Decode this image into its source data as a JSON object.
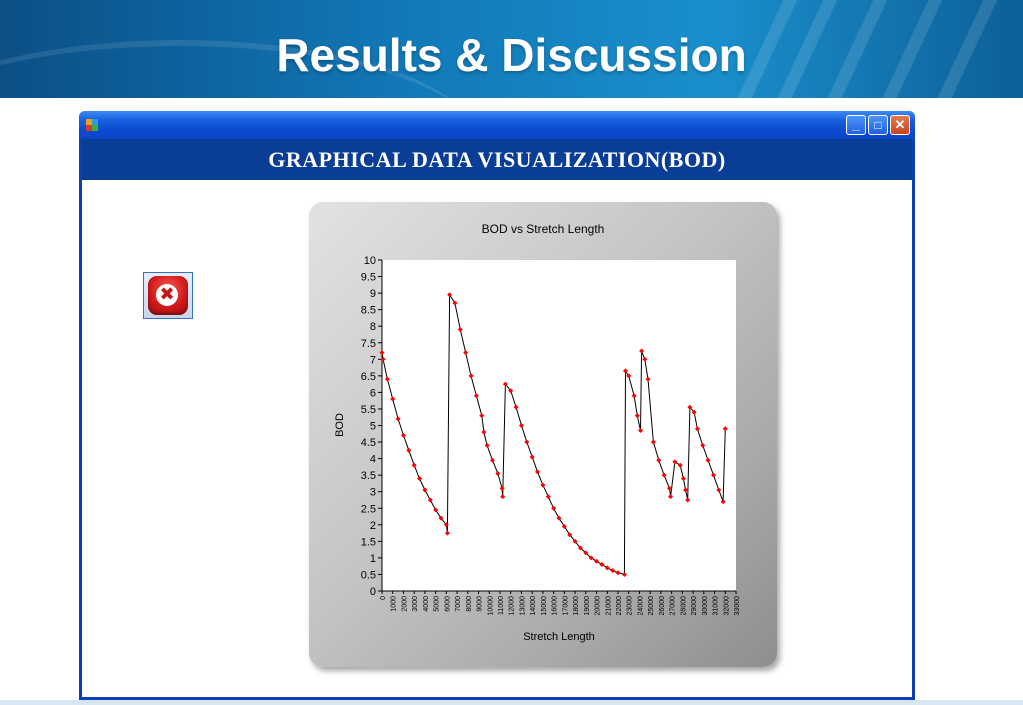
{
  "slide": {
    "title": "Results & Discussion"
  },
  "window": {
    "header": "GRAPHICAL DATA VISUALIZATION(BOD)",
    "buttons": {
      "minimize": "_",
      "maximize": "□",
      "close": "✕"
    },
    "exit_icon": "close-icon"
  },
  "colors": {
    "banner": "#1279b8",
    "header_band": "#0a3d96",
    "series_line": "#000000",
    "series_marker": "#ff0000"
  },
  "chart_data": {
    "type": "line",
    "title": "BOD vs Stretch Length",
    "xlabel": "Stretch Length",
    "ylabel": "BOD",
    "ylim": [
      0,
      10
    ],
    "xlim": [
      0,
      33000
    ],
    "yticks": [
      0,
      0.5,
      1,
      1.5,
      2,
      2.5,
      3,
      3.5,
      4,
      4.5,
      5,
      5.5,
      6,
      6.5,
      7,
      7.5,
      8,
      8.5,
      9,
      9.5,
      10
    ],
    "ytick_labels": [
      "0",
      "0.5",
      "1",
      "1.5",
      "2",
      "2.5",
      "3",
      "3.5",
      "4",
      "4.5",
      "5",
      "5.5",
      "6",
      "6.5",
      "7",
      "7.5",
      "8",
      "8.5",
      "9",
      "9.5",
      "10"
    ],
    "xticks": [
      0,
      1000,
      2000,
      3000,
      4000,
      5000,
      6000,
      7000,
      8000,
      9000,
      10000,
      11000,
      12000,
      13000,
      14000,
      15000,
      16000,
      17000,
      18000,
      19000,
      20000,
      21000,
      22000,
      23000,
      24000,
      25000,
      26000,
      27000,
      28000,
      29000,
      30000,
      31000,
      32000,
      33000
    ],
    "xtick_labels": [
      "0",
      "1000",
      "2000",
      "3000",
      "4000",
      "5000",
      "6000",
      "7000",
      "8000",
      "9000",
      "10000",
      "11000",
      "12000",
      "13000",
      "14000",
      "15000",
      "16000",
      "17000",
      "18000",
      "19000",
      "20000",
      "21000",
      "22000",
      "23000",
      "24000",
      "25000",
      "26000",
      "27000",
      "28000",
      "29000",
      "30000",
      "31000",
      "32000",
      "33000"
    ],
    "grid": false,
    "legend": "none",
    "series": [
      {
        "x": [
          0,
          100,
          500,
          1000,
          1500,
          2000,
          2500,
          3000,
          3500,
          4000,
          4500,
          5000,
          5500,
          6000,
          6100,
          6300,
          6800,
          7300,
          7800,
          8300,
          8800,
          9300,
          9500,
          9800,
          10300,
          10800,
          11200,
          11250,
          11500,
          12000,
          12500,
          13000,
          13500,
          14000,
          14500,
          15000,
          15500,
          16000,
          16500,
          17000,
          17500,
          18000,
          18500,
          19000,
          19500,
          20000,
          20500,
          21000,
          21500,
          22000,
          22600,
          22700,
          23000,
          23500,
          23800,
          24100,
          24200,
          24500,
          24800,
          25300,
          25800,
          26300,
          26800,
          26900,
          27300,
          27800,
          28100,
          28300,
          28500,
          28700,
          29100,
          29400,
          29900,
          30400,
          30900,
          31400,
          31800,
          32000
        ],
        "y": [
          7.2,
          7.0,
          6.4,
          5.8,
          5.2,
          4.7,
          4.25,
          3.8,
          3.4,
          3.05,
          2.75,
          2.45,
          2.2,
          2.0,
          1.75,
          8.95,
          8.7,
          7.9,
          7.2,
          6.5,
          5.9,
          5.3,
          4.8,
          4.4,
          3.95,
          3.55,
          3.1,
          2.85,
          6.25,
          6.05,
          5.55,
          5.0,
          4.5,
          4.05,
          3.6,
          3.2,
          2.85,
          2.5,
          2.2,
          1.95,
          1.7,
          1.5,
          1.3,
          1.15,
          1.0,
          0.9,
          0.8,
          0.7,
          0.62,
          0.55,
          0.5,
          6.65,
          6.5,
          5.9,
          5.3,
          4.85,
          7.25,
          7.0,
          6.4,
          4.5,
          3.95,
          3.5,
          3.1,
          2.85,
          3.9,
          3.8,
          3.4,
          3.05,
          2.75,
          5.55,
          5.4,
          4.9,
          4.4,
          3.95,
          3.5,
          3.05,
          2.7,
          4.9
        ]
      }
    ]
  }
}
